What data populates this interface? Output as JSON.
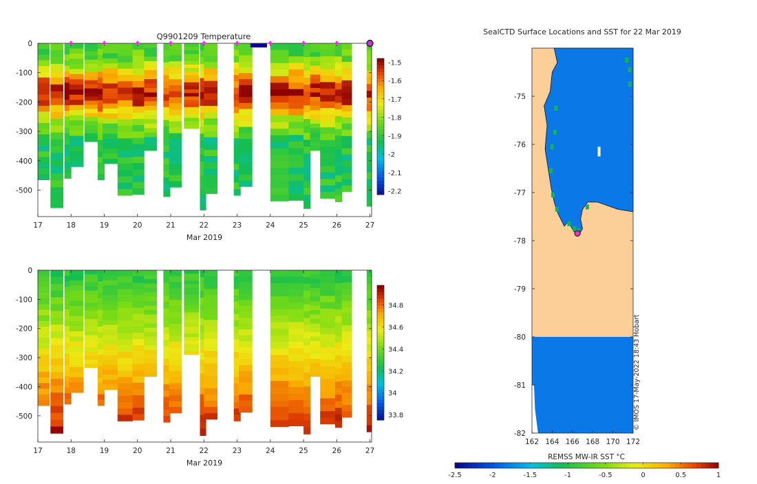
{
  "chart_data": [
    {
      "type": "heatmap",
      "title": "Q9901209  Temperature",
      "xlabel": "Mar 2019",
      "ylabel": "",
      "x_ticks": [
        "17",
        "18",
        "19",
        "20",
        "21",
        "22",
        "23",
        "24",
        "25",
        "26",
        "27"
      ],
      "xlim": [
        17,
        27.05
      ],
      "y_ticks": [
        "0",
        "-100",
        "-200",
        "-300",
        "-400",
        "-500"
      ],
      "ylim": [
        -590,
        0
      ],
      "colorbar": {
        "ticks": [
          "-1.5",
          "-1.6",
          "-1.7",
          "-1.8",
          "-1.9",
          "-2",
          "-2.1",
          "-2.2"
        ],
        "range": [
          -2.22,
          -1.48
        ]
      },
      "surface_markers": [
        18,
        19,
        20,
        21,
        22,
        23,
        24,
        25,
        26,
        27
      ]
    },
    {
      "type": "heatmap",
      "title": "",
      "xlabel": "Mar 2019",
      "ylabel": "",
      "x_ticks": [
        "17",
        "18",
        "19",
        "20",
        "21",
        "22",
        "23",
        "24",
        "25",
        "26",
        "27"
      ],
      "xlim": [
        17,
        27.05
      ],
      "y_ticks": [
        "0",
        "-100",
        "-200",
        "-300",
        "-400",
        "-500"
      ],
      "ylim": [
        -590,
        0
      ],
      "colorbar": {
        "ticks": [
          "34.8",
          "34.6",
          "34.4",
          "34.2",
          "34",
          "33.8"
        ],
        "range": [
          33.75,
          34.98
        ]
      }
    },
    {
      "type": "heatmap",
      "title": "SealCTD Surface Locations and SST for 22 Mar 2019",
      "xlabel": "",
      "ylabel": "",
      "x_ticks": [
        "162",
        "164",
        "166",
        "168",
        "170",
        "172"
      ],
      "xlim": [
        162,
        172
      ],
      "y_ticks": [
        "-75",
        "-76",
        "-77",
        "-78",
        "-79",
        "-80",
        "-81",
        "-82"
      ],
      "ylim": [
        -82,
        -74.0
      ],
      "colorbar": {
        "label": "REMSS MW-IR SST °C",
        "ticks": [
          "-2.5",
          "-2",
          "-1.5",
          "-1",
          "-0.5",
          "0",
          "0.5",
          "1"
        ],
        "range": [
          -2.5,
          1
        ]
      },
      "credit": "© IMOS 17-May-2022 18:43 Hobart",
      "last_position": {
        "lon": 166.5,
        "lat": -77.85
      }
    }
  ]
}
